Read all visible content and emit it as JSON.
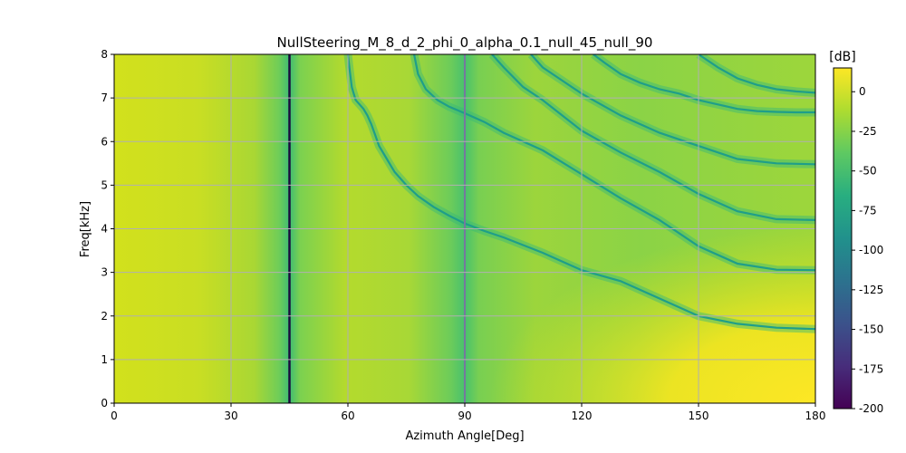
{
  "chart_data": {
    "type": "heatmap",
    "title": "NullSteering_M_8_d_2_phi_0_alpha_0.1_null_45_null_90",
    "xlabel": "Azimuth Angle[Deg]",
    "ylabel": "Freq[kHz]",
    "xlim": [
      0,
      180
    ],
    "ylim": [
      0,
      8
    ],
    "xticks": [
      "0",
      "30",
      "60",
      "90",
      "120",
      "150",
      "180"
    ],
    "yticks": [
      "0",
      "1",
      "2",
      "3",
      "4",
      "5",
      "6",
      "7",
      "8"
    ],
    "grid": true,
    "colorbar": {
      "label": "[dB]",
      "colormap": "viridis",
      "range": [
        -200,
        15
      ],
      "ticks": [
        "0",
        "-25",
        "-50",
        "-75",
        "-100",
        "-125",
        "-150",
        "-175",
        "-200"
      ]
    },
    "null_angles_deg": [
      45,
      90
    ],
    "null_curves": [
      {
        "x": [
          60,
          60.5,
          61,
          61.5,
          62,
          63,
          64,
          65,
          66,
          67,
          68,
          70,
          72,
          75,
          78,
          82,
          86,
          90,
          95,
          100,
          110,
          120,
          130,
          140,
          150,
          160,
          170,
          180
        ],
        "y": [
          8.0,
          7.6,
          7.25,
          7.1,
          6.95,
          6.85,
          6.75,
          6.6,
          6.4,
          6.15,
          5.9,
          5.6,
          5.3,
          5.0,
          4.75,
          4.5,
          4.3,
          4.12,
          3.95,
          3.8,
          3.45,
          3.05,
          2.8,
          2.4,
          2.0,
          1.82,
          1.73,
          1.7
        ]
      },
      {
        "x": [
          77,
          78,
          80,
          83,
          86,
          90,
          95,
          100,
          110,
          120,
          130,
          140,
          150,
          160,
          170,
          180
        ],
        "y": [
          8.0,
          7.55,
          7.2,
          6.95,
          6.8,
          6.65,
          6.45,
          6.2,
          5.8,
          5.25,
          4.7,
          4.2,
          3.6,
          3.2,
          3.06,
          3.05
        ]
      },
      {
        "x": [
          97,
          100,
          105,
          110,
          120,
          130,
          140,
          150,
          160,
          170,
          180
        ],
        "y": [
          8.0,
          7.7,
          7.25,
          6.95,
          6.25,
          5.75,
          5.3,
          4.8,
          4.4,
          4.22,
          4.2
        ]
      },
      {
        "x": [
          107,
          110,
          115,
          120,
          130,
          140,
          150,
          160,
          170,
          180
        ],
        "y": [
          8.0,
          7.7,
          7.4,
          7.1,
          6.6,
          6.2,
          5.9,
          5.6,
          5.5,
          5.48
        ]
      },
      {
        "x": [
          123,
          126,
          130,
          135,
          140,
          145,
          150,
          155,
          160,
          165,
          170,
          175,
          180
        ],
        "y": [
          8.0,
          7.8,
          7.55,
          7.35,
          7.2,
          7.1,
          6.95,
          6.85,
          6.75,
          6.7,
          6.68,
          6.67,
          6.67
        ]
      },
      {
        "x": [
          150,
          155,
          160,
          165,
          170,
          175,
          180
        ],
        "y": [
          8.0,
          7.7,
          7.45,
          7.3,
          7.2,
          7.15,
          7.12
        ]
      }
    ]
  }
}
